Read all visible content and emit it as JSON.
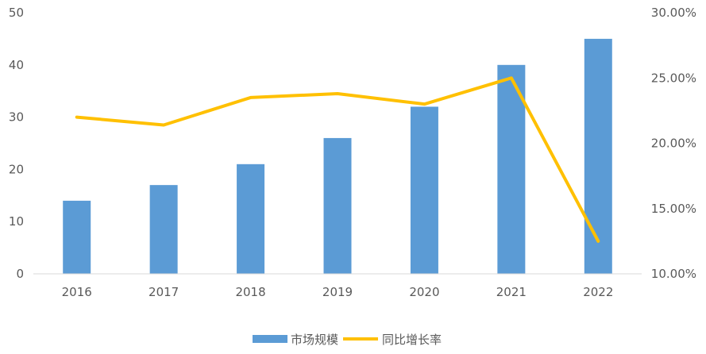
{
  "chart_data": {
    "type": "bar",
    "categories": [
      "2016",
      "2017",
      "2018",
      "2019",
      "2020",
      "2021",
      "2022"
    ],
    "series": [
      {
        "name": "市场规模",
        "type": "bar",
        "axis": "left",
        "color": "#5B9BD5",
        "values": [
          14,
          17,
          21,
          26,
          32,
          40,
          45
        ]
      },
      {
        "name": "同比增长率",
        "type": "line",
        "axis": "right",
        "color": "#FFC000",
        "values": [
          0.22,
          0.214,
          0.235,
          0.238,
          0.23,
          0.25,
          0.125
        ]
      }
    ],
    "y_left": {
      "min": 0,
      "max": 50,
      "ticks": [
        "0",
        "10",
        "20",
        "30",
        "40",
        "50"
      ]
    },
    "y_right": {
      "min": 0.1,
      "max": 0.3,
      "ticks": [
        "10.00%",
        "15.00%",
        "20.00%",
        "25.00%",
        "30.00%"
      ]
    },
    "grid": false,
    "legend_position": "bottom"
  }
}
